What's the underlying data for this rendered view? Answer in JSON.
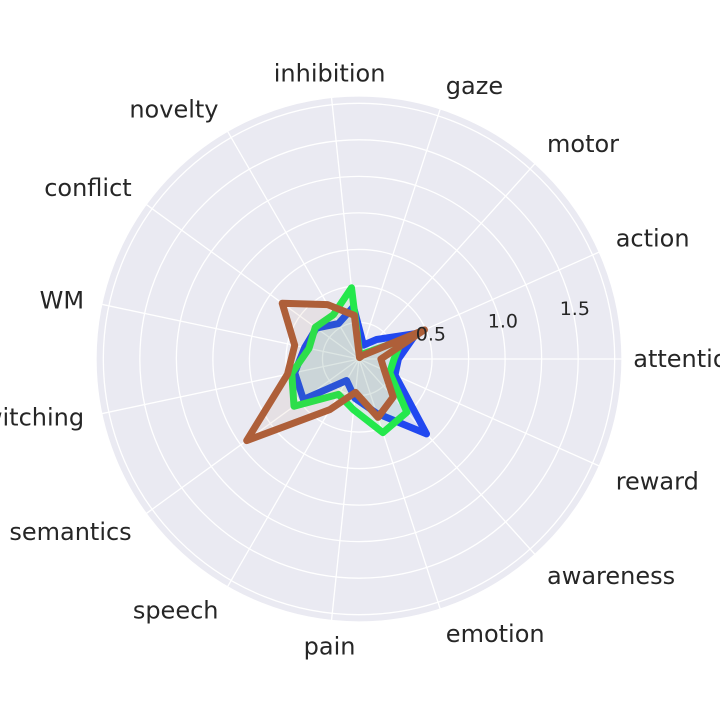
{
  "chart_data": {
    "type": "radar",
    "title": "",
    "categories": [
      "attention",
      "action",
      "motor",
      "gaze",
      "inhibition",
      "novelty",
      "conflict",
      "WM",
      "switching",
      "semantics",
      "speech",
      "pain",
      "emotion",
      "awareness",
      "reward"
    ],
    "radial_ticks": [
      0.5,
      1.0,
      1.5
    ],
    "radial_tick_labels": [
      "0.5",
      "1.0",
      "1.5"
    ],
    "rlim": [
      0,
      1.8
    ],
    "grid": true,
    "legend": "none",
    "series": [
      {
        "color": "#2148f0",
        "values": [
          0.27,
          0.43,
          0.18,
          0.1,
          0.36,
          0.28,
          0.36,
          0.38,
          0.45,
          0.47,
          0.17,
          0.27,
          0.39,
          0.69,
          0.27
        ]
      },
      {
        "color": "#24e84c",
        "values": [
          0.24,
          0.32,
          0.05,
          0.02,
          0.49,
          0.35,
          0.37,
          0.35,
          0.47,
          0.55,
          0.28,
          0.35,
          0.53,
          0.49,
          0.23
        ]
      },
      {
        "color": "#ae5f39",
        "values": [
          0.15,
          0.49,
          0.03,
          0.01,
          0.3,
          0.43,
          0.65,
          0.45,
          0.5,
          0.95,
          0.4,
          0.23,
          0.42,
          0.35,
          0.19
        ]
      }
    ]
  }
}
